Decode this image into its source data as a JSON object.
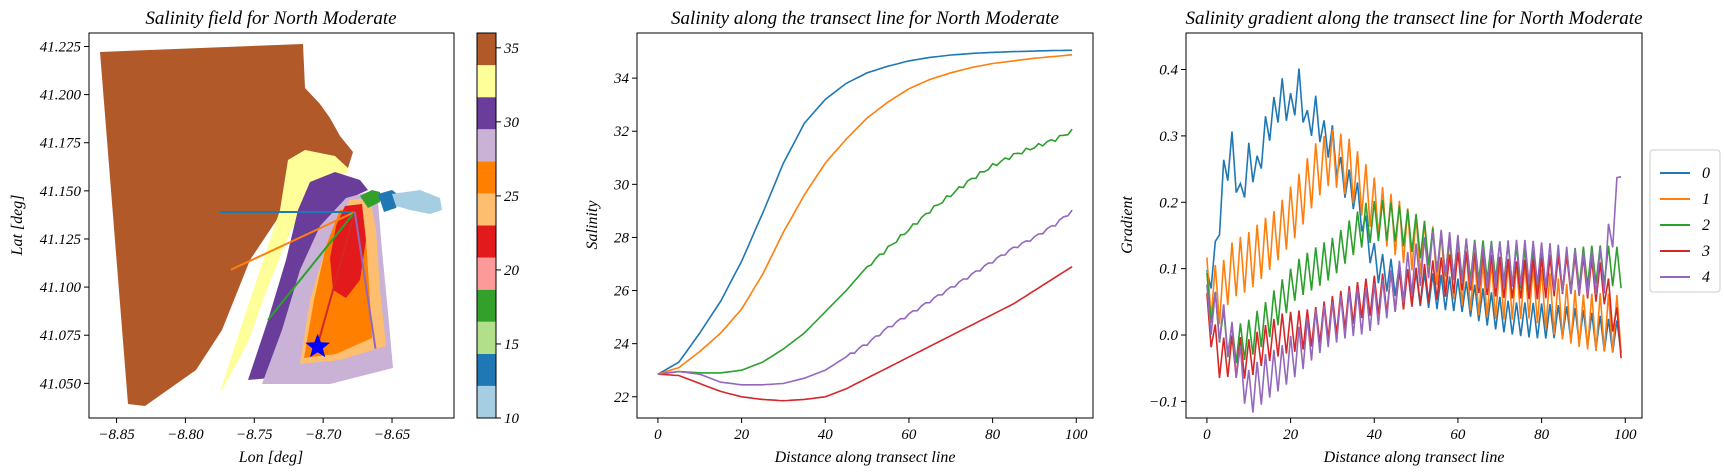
{
  "colors": {
    "series": [
      "#1f77b4",
      "#ff7f0e",
      "#2ca02c",
      "#d62728",
      "#9467bd"
    ],
    "colormap_Paired": [
      "#a6cee3",
      "#1f78b4",
      "#b2df8a",
      "#33a02c",
      "#fb9a99",
      "#e31a1c",
      "#fdbf6f",
      "#ff7f00",
      "#cab2d6",
      "#6a3d9a",
      "#ffff99",
      "#b15928"
    ],
    "marker": "#0000ff"
  },
  "chart_data": [
    {
      "type": "heatmap",
      "title": "Salinity field for North Moderate",
      "xlabel": "Lon [deg]",
      "ylabel": "Lat [deg]",
      "xlim": [
        -8.87,
        -8.605
      ],
      "ylim": [
        41.032,
        41.232
      ],
      "xticks": [
        -8.85,
        -8.8,
        -8.75,
        -8.7,
        -8.65
      ],
      "xtick_labels": [
        "−8.85",
        "−8.80",
        "−8.75",
        "−8.70",
        "−8.65"
      ],
      "yticks": [
        41.05,
        41.075,
        41.1,
        41.125,
        41.15,
        41.175,
        41.2,
        41.225
      ],
      "ytick_labels": [
        "41.050",
        "41.075",
        "41.100",
        "41.125",
        "41.150",
        "41.175",
        "41.200",
        "41.225"
      ],
      "colorbar": {
        "min": 10,
        "max": 36,
        "ticks": [
          10,
          15,
          20,
          25,
          30,
          35
        ],
        "tick_labels": [
          "10",
          "15",
          "20",
          "25",
          "30",
          "35"
        ]
      },
      "transect_lines": [
        {
          "name": "0",
          "start": [
            -8.775,
            41.139
          ],
          "end": [
            -8.677,
            41.139
          ]
        },
        {
          "name": "1",
          "start": [
            -8.767,
            41.109
          ],
          "end": [
            -8.677,
            41.139
          ]
        },
        {
          "name": "2",
          "start": [
            -8.74,
            41.083
          ],
          "end": [
            -8.677,
            41.139
          ]
        },
        {
          "name": "3",
          "start": [
            -8.704,
            41.07
          ],
          "end": [
            -8.677,
            41.139
          ]
        },
        {
          "name": "4",
          "start": [
            -8.662,
            41.068
          ],
          "end": [
            -8.677,
            41.139
          ]
        }
      ],
      "marker": {
        "shape": "star",
        "lon": -8.704,
        "lat": 41.069
      }
    },
    {
      "type": "line",
      "title": "Salinity along the transect line for North Moderate",
      "xlabel": "Distance along transect line",
      "ylabel": "Salinity",
      "xlim": [
        -5,
        104
      ],
      "ylim": [
        21.2,
        35.7
      ],
      "xticks": [
        0,
        20,
        40,
        60,
        80,
        100
      ],
      "yticks": [
        22,
        24,
        26,
        28,
        30,
        32,
        34
      ],
      "x_count": 100,
      "series": [
        {
          "anchors_x": [
            0,
            5,
            10,
            15,
            20,
            25,
            30,
            35,
            40,
            45,
            50,
            55,
            60,
            65,
            70,
            75,
            80,
            85,
            90,
            95,
            99
          ],
          "anchors_y": [
            22.85,
            23.3,
            24.4,
            25.6,
            27.1,
            28.9,
            30.8,
            32.3,
            33.2,
            33.8,
            34.2,
            34.45,
            34.65,
            34.78,
            34.87,
            34.93,
            34.97,
            35.0,
            35.02,
            35.04,
            35.05
          ]
        },
        {
          "anchors_x": [
            0,
            5,
            10,
            15,
            20,
            25,
            30,
            35,
            40,
            45,
            50,
            55,
            60,
            65,
            70,
            75,
            80,
            85,
            90,
            95,
            99
          ],
          "anchors_y": [
            22.85,
            23.1,
            23.7,
            24.4,
            25.3,
            26.6,
            28.2,
            29.6,
            30.8,
            31.7,
            32.5,
            33.1,
            33.6,
            33.95,
            34.2,
            34.4,
            34.55,
            34.65,
            34.75,
            34.82,
            34.88
          ]
        },
        {
          "anchors_x": [
            0,
            5,
            10,
            15,
            20,
            25,
            30,
            35,
            40,
            45,
            50,
            55,
            60,
            65,
            70,
            75,
            80,
            85,
            90,
            95,
            99
          ],
          "anchors_y": [
            22.85,
            22.95,
            22.9,
            22.9,
            23.0,
            23.3,
            23.8,
            24.4,
            25.2,
            26.0,
            26.9,
            27.6,
            28.3,
            29.0,
            29.6,
            30.2,
            30.7,
            31.1,
            31.4,
            31.7,
            32.0
          ]
        },
        {
          "anchors_x": [
            0,
            5,
            10,
            15,
            20,
            25,
            30,
            35,
            40,
            45,
            50,
            55,
            60,
            65,
            70,
            75,
            80,
            85,
            90,
            95,
            99
          ],
          "anchors_y": [
            22.85,
            22.8,
            22.5,
            22.2,
            22.0,
            21.9,
            21.85,
            21.9,
            22.0,
            22.3,
            22.7,
            23.1,
            23.5,
            23.9,
            24.3,
            24.7,
            25.1,
            25.5,
            26.0,
            26.5,
            26.9
          ]
        },
        {
          "anchors_x": [
            0,
            5,
            10,
            15,
            20,
            25,
            30,
            35,
            40,
            45,
            50,
            55,
            60,
            65,
            70,
            75,
            80,
            85,
            90,
            95,
            99
          ],
          "anchors_y": [
            22.85,
            22.95,
            22.85,
            22.55,
            22.45,
            22.45,
            22.5,
            22.7,
            23.0,
            23.5,
            24.0,
            24.6,
            25.1,
            25.6,
            26.1,
            26.6,
            27.1,
            27.6,
            28.0,
            28.5,
            29.0
          ]
        }
      ]
    },
    {
      "type": "line",
      "title": "Salinity gradient along the transect line for North Moderate",
      "xlabel": "Distance along transect line",
      "ylabel": "Gradient",
      "xlim": [
        -5,
        104
      ],
      "ylim": [
        -0.125,
        0.455
      ],
      "xticks": [
        0,
        20,
        40,
        60,
        80,
        100
      ],
      "yticks": [
        -0.1,
        0.0,
        0.1,
        0.2,
        0.3,
        0.4
      ],
      "ytick_labels": [
        "−0.1",
        "0.0",
        "0.1",
        "0.2",
        "0.3",
        "0.4"
      ],
      "legend": {
        "entries": [
          "0",
          "1",
          "2",
          "3",
          "4"
        ],
        "placement": "center-right outside"
      },
      "series": [
        {
          "name": "0",
          "anchors_x": [
            0,
            2,
            4,
            6,
            8,
            10,
            12,
            14,
            16,
            18,
            20,
            22,
            24,
            26,
            28,
            30,
            32,
            34,
            36,
            38,
            40,
            42,
            44,
            46,
            50,
            55,
            60,
            65,
            70,
            75,
            80,
            85,
            90,
            95,
            99
          ],
          "anchors_y": [
            0.08,
            0.12,
            0.24,
            0.28,
            0.2,
            0.26,
            0.24,
            0.3,
            0.33,
            0.36,
            0.34,
            0.38,
            0.32,
            0.34,
            0.3,
            0.29,
            0.24,
            0.22,
            0.2,
            0.15,
            0.11,
            0.095,
            0.09,
            0.085,
            0.075,
            0.065,
            0.055,
            0.045,
            0.035,
            0.028,
            0.02,
            0.014,
            0.01,
            0.005,
            0.002
          ],
          "jitter": 0.03
        },
        {
          "name": "1",
          "anchors_x": [
            0,
            3,
            6,
            10,
            14,
            18,
            22,
            26,
            30,
            34,
            38,
            42,
            46,
            50,
            55,
            60,
            65,
            70,
            75,
            80,
            85,
            90,
            95,
            99
          ],
          "anchors_y": [
            0.07,
            0.05,
            0.09,
            0.11,
            0.14,
            0.17,
            0.2,
            0.24,
            0.26,
            0.25,
            0.22,
            0.19,
            0.16,
            0.13,
            0.11,
            0.095,
            0.08,
            0.07,
            0.06,
            0.05,
            0.04,
            0.03,
            0.02,
            0.01
          ],
          "jitter": 0.05
        },
        {
          "name": "2",
          "anchors_x": [
            0,
            3,
            6,
            10,
            14,
            18,
            22,
            26,
            30,
            34,
            38,
            42,
            46,
            50,
            55,
            60,
            65,
            70,
            75,
            80,
            85,
            90,
            95,
            99
          ],
          "anchors_y": [
            0.06,
            0.02,
            -0.01,
            0.0,
            0.02,
            0.05,
            0.08,
            0.1,
            0.12,
            0.15,
            0.17,
            0.17,
            0.16,
            0.15,
            0.13,
            0.12,
            0.11,
            0.105,
            0.1,
            0.1,
            0.1,
            0.1,
            0.1,
            0.1
          ],
          "jitter": 0.035
        },
        {
          "name": "3",
          "anchors_x": [
            0,
            3,
            6,
            10,
            14,
            18,
            22,
            26,
            30,
            34,
            38,
            42,
            46,
            50,
            55,
            60,
            65,
            70,
            75,
            80,
            85,
            90,
            95,
            99
          ],
          "anchors_y": [
            0.04,
            -0.03,
            -0.03,
            -0.04,
            -0.02,
            0.0,
            0.01,
            0.02,
            0.03,
            0.04,
            0.05,
            0.06,
            0.07,
            0.08,
            0.085,
            0.09,
            0.09,
            0.09,
            0.09,
            0.085,
            0.085,
            0.085,
            0.08,
            0.0
          ],
          "jitter": 0.035
        },
        {
          "name": "4",
          "anchors_x": [
            0,
            3,
            6,
            10,
            14,
            18,
            22,
            26,
            30,
            34,
            38,
            42,
            46,
            50,
            55,
            60,
            65,
            70,
            75,
            80,
            85,
            90,
            95,
            98,
            99
          ],
          "anchors_y": [
            0.04,
            0.02,
            -0.02,
            -0.09,
            -0.06,
            -0.04,
            -0.02,
            0.0,
            0.01,
            0.03,
            0.04,
            0.06,
            0.08,
            0.1,
            0.12,
            0.115,
            0.11,
            0.11,
            0.105,
            0.1,
            0.1,
            0.1,
            0.1,
            0.2,
            0.27
          ],
          "jitter": 0.04
        }
      ]
    }
  ]
}
